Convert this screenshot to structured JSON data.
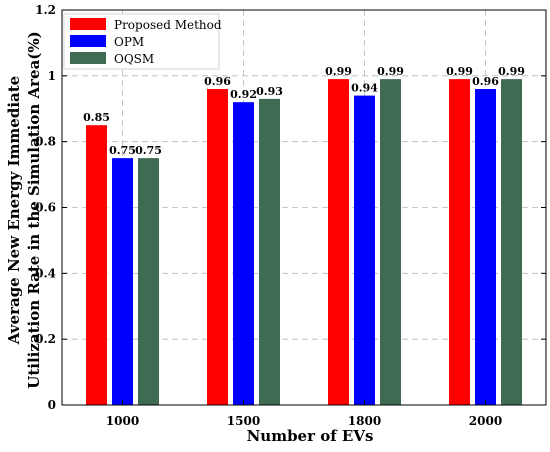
{
  "chart_data": {
    "type": "bar",
    "categories": [
      "1000",
      "1500",
      "1800",
      "2000"
    ],
    "series": [
      {
        "name": "Proposed Method",
        "color": "#ff0000",
        "values": [
          0.85,
          0.96,
          0.99,
          0.99
        ]
      },
      {
        "name": "OPM",
        "color": "#0000ff",
        "values": [
          0.75,
          0.92,
          0.94,
          0.96
        ]
      },
      {
        "name": "OQSM",
        "color": "#3e6b52",
        "values": [
          0.75,
          0.93,
          0.99,
          0.99
        ]
      }
    ],
    "value_labels": [
      [
        "0.85",
        "0.75",
        "0.75"
      ],
      [
        "0.96",
        "0.92",
        "0.93"
      ],
      [
        "0.99",
        "0.94",
        "0.99"
      ],
      [
        "0.99",
        "0.96",
        "0.99"
      ]
    ],
    "xlabel": "Number of EVs",
    "ylabel_lines": [
      "Average New Energy Immediate",
      "Utilization Rate in the Simulation Area(%)"
    ],
    "ylim": [
      0,
      1.2
    ],
    "yticks": [
      0,
      0.2,
      0.4,
      0.6,
      0.8,
      1,
      1.2
    ],
    "ytick_labels": [
      "0",
      "0.2",
      "0.4",
      "0.6",
      "0.8",
      "1",
      "1.2"
    ],
    "grid": true,
    "legend_position": "top-left"
  }
}
